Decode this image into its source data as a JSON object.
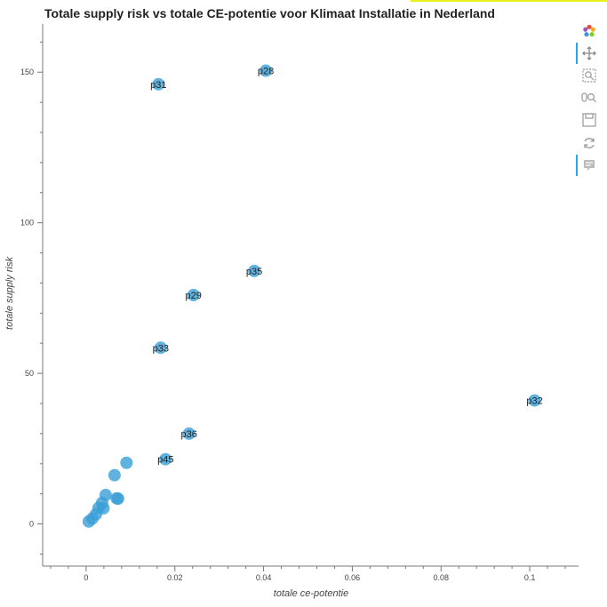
{
  "page": {
    "title": "Totale supply risk vs totale CE-potentie voor Klimaat Installatie in Nederland"
  },
  "toolbar": {
    "tools": [
      {
        "name": "bokeh-logo-icon",
        "active": false
      },
      {
        "name": "pan-tool-icon",
        "active": true
      },
      {
        "name": "box-zoom-tool-icon",
        "active": false
      },
      {
        "name": "wheel-zoom-tool-icon",
        "active": false
      },
      {
        "name": "save-tool-icon",
        "active": false
      },
      {
        "name": "reset-tool-icon",
        "active": false
      },
      {
        "name": "hover-tool-icon",
        "active": true
      }
    ]
  },
  "chart_data": {
    "type": "scatter",
    "title": "Totale supply risk vs totale CE-potentie voor Klimaat Installatie in Nederland",
    "xlabel": "totale ce-potentie",
    "ylabel": "totale supply risk",
    "xlim": [
      -0.0098,
      0.111
    ],
    "ylim": [
      -14,
      166
    ],
    "x_ticks": [
      0,
      0.02,
      0.04,
      0.06,
      0.08,
      0.1
    ],
    "x_tick_labels": [
      "0",
      "0.02",
      "0.04",
      "0.06",
      "0.08",
      "0.1"
    ],
    "y_ticks": [
      0,
      50,
      100,
      150
    ],
    "y_tick_labels": [
      "0",
      "50",
      "100",
      "150"
    ],
    "grid": false,
    "marker_color": "#3a9fd6",
    "points": [
      {
        "label": "p28",
        "x": 0.0405,
        "y": 150.5
      },
      {
        "label": "p31",
        "x": 0.0163,
        "y": 146
      },
      {
        "label": "p35",
        "x": 0.0379,
        "y": 84
      },
      {
        "label": "p29",
        "x": 0.0242,
        "y": 76
      },
      {
        "label": "p33",
        "x": 0.0168,
        "y": 58.5
      },
      {
        "label": "p32",
        "x": 0.1011,
        "y": 41
      },
      {
        "label": "p36",
        "x": 0.0232,
        "y": 30
      },
      {
        "label": "p45",
        "x": 0.0179,
        "y": 21.5
      },
      {
        "label": "",
        "x": 0.0091,
        "y": 20.3
      },
      {
        "label": "",
        "x": 0.0064,
        "y": 16.2
      },
      {
        "label": "",
        "x": 0.0044,
        "y": 9.6
      },
      {
        "label": "",
        "x": 0.0072,
        "y": 8.4
      },
      {
        "label": "",
        "x": 0.0069,
        "y": 8.5
      },
      {
        "label": "",
        "x": 0.0036,
        "y": 7.0
      },
      {
        "label": "",
        "x": 0.0028,
        "y": 5.3
      },
      {
        "label": "",
        "x": 0.0039,
        "y": 5.2
      },
      {
        "label": "",
        "x": 0.0022,
        "y": 3.2
      },
      {
        "label": "",
        "x": 0.0014,
        "y": 1.8
      },
      {
        "label": "",
        "x": 0.0006,
        "y": 0.8
      }
    ]
  }
}
